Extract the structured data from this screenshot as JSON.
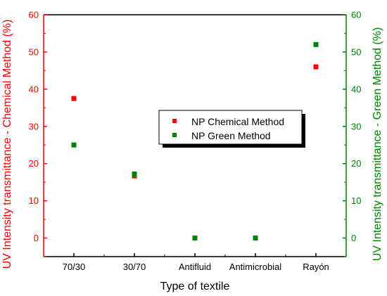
{
  "chart_data": {
    "type": "scatter",
    "categories": [
      "70/30",
      "30/70",
      "Antifluid",
      "Antimicrobial",
      "Rayón"
    ],
    "series": [
      {
        "name": "NP Chemical Method",
        "axis": "left",
        "values": [
          37.5,
          16.7,
          null,
          null,
          46.0
        ]
      },
      {
        "name": "NP Green Method",
        "axis": "right",
        "values": [
          25.0,
          17.2,
          0,
          0,
          52.0
        ]
      }
    ],
    "xlabel": "Type of textile",
    "ylabel_left": "UV Intensity transmittance - Chemical Method (%)",
    "ylabel_right": "UV Intensity transmittance - Green Method (%)",
    "ylim_left": [
      -5,
      60
    ],
    "ylim_right": [
      -5,
      60
    ],
    "yticks": [
      0,
      10,
      20,
      30,
      40,
      50,
      60
    ],
    "grid": false,
    "legend_position": "center-right",
    "colors": {
      "left_axis": "#ff0000",
      "right_axis": "#008000",
      "chemical": "#ff0000",
      "green": "#008000"
    }
  }
}
